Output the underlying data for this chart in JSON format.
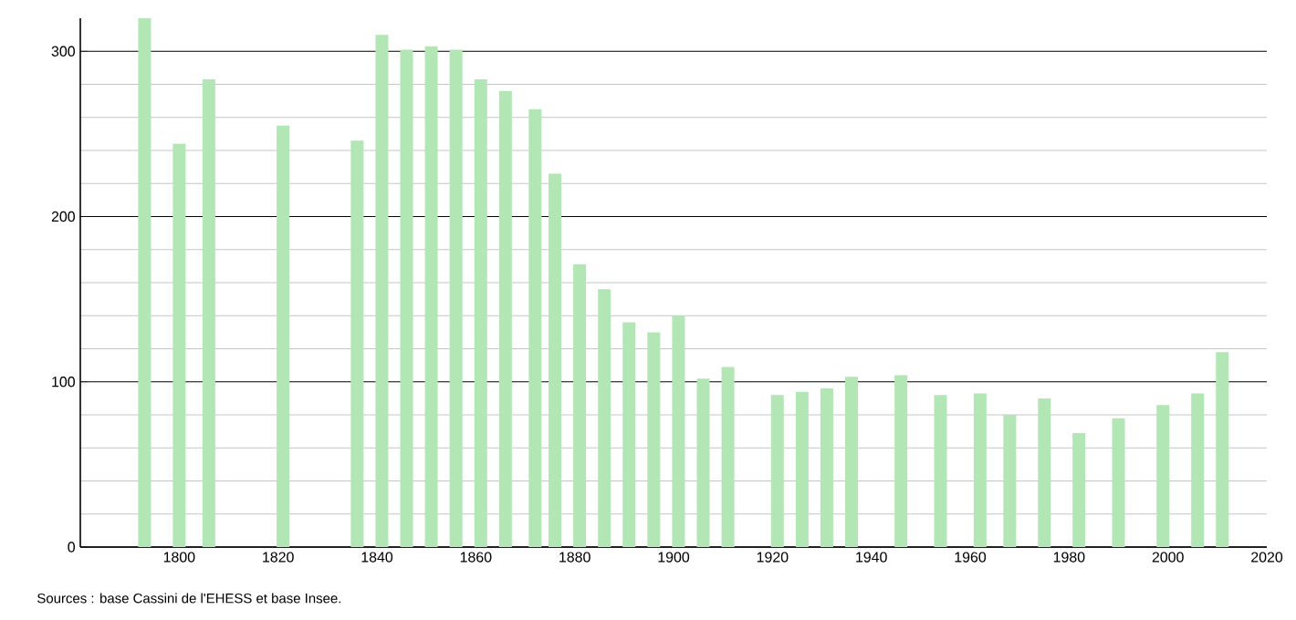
{
  "chart_data": {
    "type": "bar",
    "x": [
      1793,
      1800,
      1806,
      1821,
      1836,
      1841,
      1846,
      1851,
      1856,
      1861,
      1866,
      1872,
      1876,
      1881,
      1886,
      1891,
      1896,
      1901,
      1906,
      1911,
      1921,
      1926,
      1931,
      1936,
      1946,
      1954,
      1962,
      1968,
      1975,
      1982,
      1990,
      1999,
      2006,
      2011
    ],
    "values": [
      320,
      244,
      283,
      255,
      246,
      310,
      301,
      303,
      301,
      283,
      276,
      265,
      226,
      171,
      156,
      136,
      130,
      140,
      102,
      109,
      92,
      94,
      96,
      103,
      104,
      92,
      93,
      80,
      90,
      69,
      78,
      86,
      93,
      118
    ],
    "color": "#b3e6b5",
    "xlim": [
      1780,
      2020
    ],
    "ylim": [
      0,
      320
    ],
    "xticks": [
      1800,
      1820,
      1840,
      1860,
      1880,
      1900,
      1920,
      1940,
      1960,
      1980,
      2000,
      2020
    ],
    "yticks": [
      0,
      100,
      200,
      300
    ],
    "grid": "y",
    "annotations": [
      "Sources : base Cassini de l'EHESS et base Insee."
    ]
  }
}
